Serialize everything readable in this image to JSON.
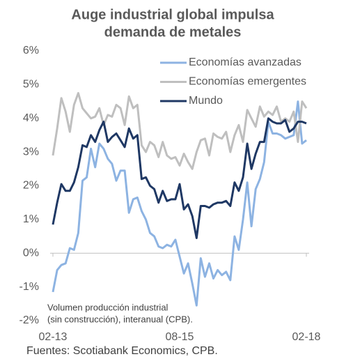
{
  "chart_data": {
    "type": "line",
    "title": [
      "Auge industrial global impulsa",
      "demanda de metales"
    ],
    "annotation": [
      "Volumen producción industrial",
      "(sin construcción), interanual (CPB)."
    ],
    "source": "Fuentes: Scotiabank Economics, CPB.",
    "categories": [
      "02-13",
      null,
      null,
      null,
      null,
      null,
      null,
      null,
      null,
      null,
      null,
      null,
      null,
      null,
      null,
      null,
      null,
      null,
      null,
      null,
      null,
      null,
      null,
      null,
      null,
      null,
      null,
      null,
      null,
      null,
      "08-15",
      null,
      null,
      null,
      null,
      null,
      null,
      null,
      null,
      null,
      null,
      null,
      null,
      null,
      null,
      null,
      null,
      null,
      null,
      null,
      null,
      null,
      null,
      null,
      null,
      null,
      null,
      null,
      null,
      null,
      "02-18"
    ],
    "ylim": [
      -2,
      6
    ],
    "yticks": [
      {
        "value": -2,
        "label": "-2%"
      },
      {
        "value": -1,
        "label": "-1%"
      },
      {
        "value": 0,
        "label": "0%"
      },
      {
        "value": 1,
        "label": "1%"
      },
      {
        "value": 2,
        "label": "2%"
      },
      {
        "value": 3,
        "label": "3%"
      },
      {
        "value": 4,
        "label": "4%"
      },
      {
        "value": 5,
        "label": "5%"
      },
      {
        "value": 6,
        "label": "6%"
      }
    ],
    "grid": false,
    "legend": "top-right",
    "series": [
      {
        "name": "Economías avanzadas",
        "color": "#8db3e2",
        "values": [
          -1.15,
          -0.5,
          -0.35,
          -0.3,
          0.15,
          0.1,
          0.6,
          2.15,
          2.25,
          3.1,
          2.55,
          3.25,
          3.1,
          2.8,
          2.65,
          2.15,
          2.45,
          2.45,
          1.2,
          1.6,
          1.65,
          1.25,
          1.0,
          0.6,
          0.5,
          0.2,
          0.15,
          0.25,
          0.2,
          0.4,
          -0.1,
          -0.6,
          -0.3,
          -0.9,
          -1.55,
          -0.15,
          -0.7,
          -0.3,
          -0.75,
          -0.5,
          -0.65,
          -0.55,
          -0.8,
          0.5,
          0.1,
          1.0,
          2.1,
          0.8,
          1.9,
          2.2,
          2.7,
          3.9,
          3.55,
          3.55,
          3.5,
          3.4,
          3.45,
          3.5,
          4.5,
          3.25,
          3.35
        ]
      },
      {
        "name": "Economías emergentes",
        "color": "#bfbfbf",
        "values": [
          2.9,
          3.7,
          4.6,
          4.2,
          3.6,
          4.4,
          4.75,
          4.3,
          4.15,
          4.0,
          4.05,
          4.3,
          3.8,
          4.1,
          4.05,
          4.4,
          4.3,
          3.8,
          4.65,
          4.3,
          4.4,
          3.2,
          3.0,
          3.3,
          3.2,
          2.85,
          3.3,
          2.9,
          2.8,
          2.85,
          2.6,
          2.95,
          2.7,
          2.5,
          3.0,
          3.35,
          3.4,
          2.9,
          3.55,
          3.45,
          3.4,
          3.6,
          3.0,
          3.5,
          3.8,
          3.3,
          4.25,
          4.0,
          3.75,
          4.35,
          4.05,
          4.2,
          4.1,
          4.35,
          3.9,
          4.0,
          3.9,
          4.2,
          3.3,
          4.5,
          4.3
        ]
      },
      {
        "name": "Mundo",
        "color": "#1f3864",
        "values": [
          0.85,
          1.5,
          2.05,
          1.85,
          1.85,
          2.1,
          2.55,
          3.2,
          3.15,
          3.5,
          3.3,
          3.65,
          3.9,
          3.3,
          3.45,
          3.55,
          3.35,
          3.15,
          3.7,
          3.4,
          3.5,
          2.2,
          2.25,
          2.0,
          1.9,
          1.5,
          1.85,
          1.55,
          1.6,
          1.6,
          2.05,
          1.3,
          1.45,
          1.1,
          0.45,
          1.4,
          1.4,
          1.35,
          1.45,
          1.5,
          1.5,
          1.55,
          1.4,
          2.1,
          1.85,
          2.25,
          3.25,
          2.5,
          2.95,
          3.3,
          3.3,
          4.0,
          3.9,
          3.85,
          3.85,
          3.95,
          3.6,
          3.7,
          3.9,
          3.9,
          3.85
        ]
      }
    ]
  }
}
